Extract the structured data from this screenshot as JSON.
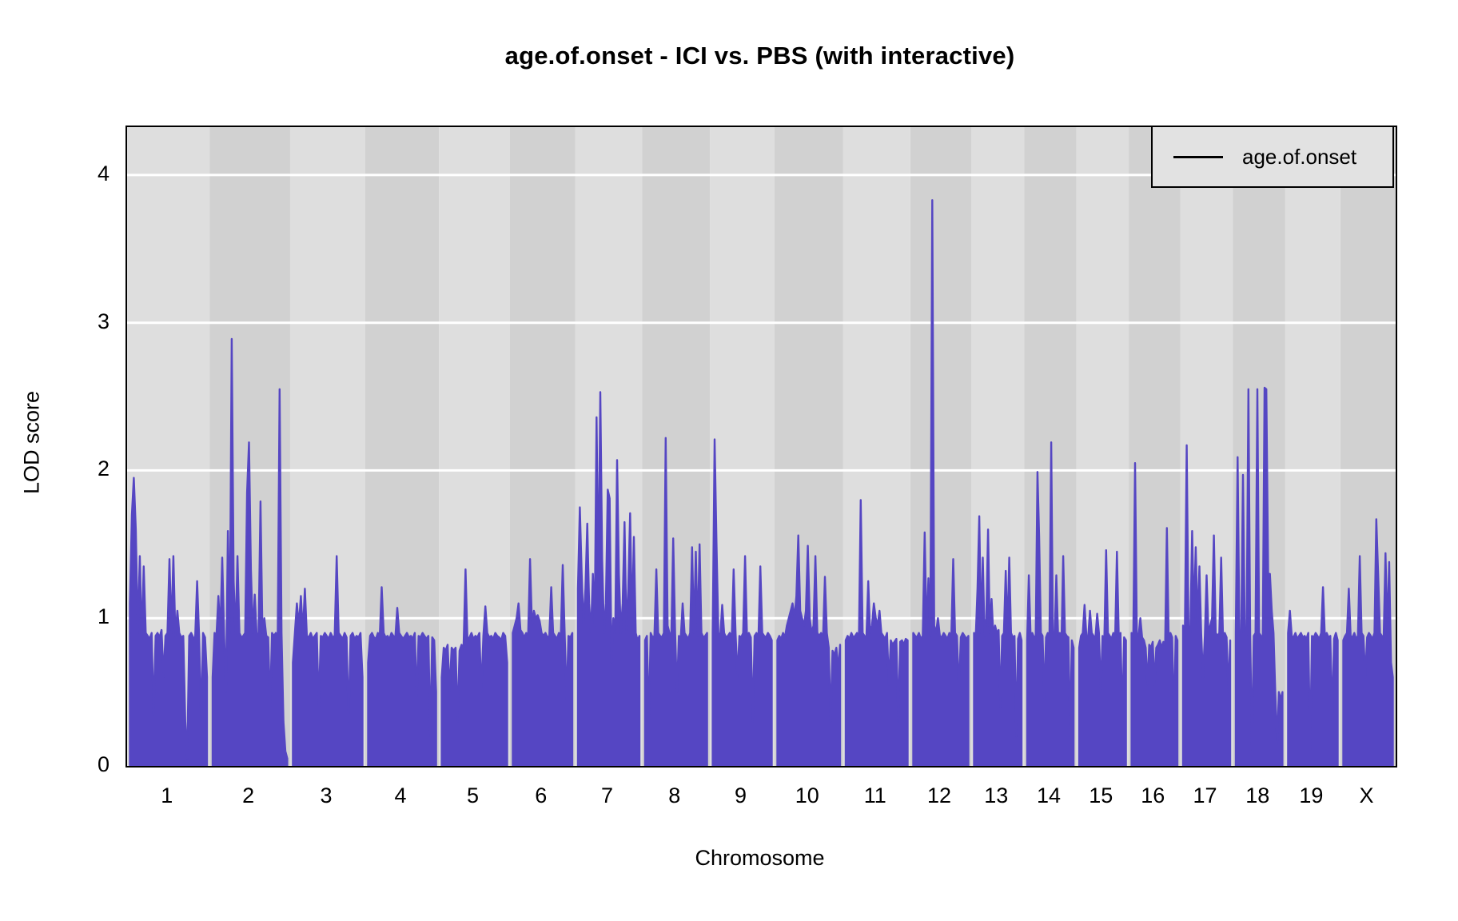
{
  "title": "age.of.onset - ICI vs. PBS (with interactive)",
  "y_axis": {
    "label": "LOD score",
    "tick_values": [
      4,
      3,
      2,
      1,
      0
    ]
  },
  "x_axis": {
    "label": "Chromosome"
  },
  "legend": {
    "label": "age.of.onset",
    "line_color": "#000000"
  },
  "colors": {
    "lod_fill": "#5546c3",
    "band_light": "#dedede",
    "band_dark": "#d1d1d1",
    "gridline": "#ffffff",
    "frame": "#000000",
    "legend_bg": "#e2e2e2"
  },
  "chart_data": {
    "type": "line",
    "title": "age.of.onset - ICI vs. PBS (with interactive)",
    "xlabel": "Chromosome",
    "ylabel": "LOD score",
    "ylim": [
      0,
      4.324
    ],
    "yticks": [
      0,
      1,
      2,
      3,
      4
    ],
    "grid": "horizontal white lines at integer LOD on alternating gray chromosome bands",
    "legend_position": "top-right",
    "series_name": "age.of.onset",
    "notable_peaks": [
      {
        "chr": "2",
        "lod": 2.89
      },
      {
        "chr": "2",
        "lod": 2.55
      },
      {
        "chr": "2",
        "lod": 2.19
      },
      {
        "chr": "7",
        "lod": 2.53
      },
      {
        "chr": "7",
        "lod": 2.36
      },
      {
        "chr": "7",
        "lod": 2.07
      },
      {
        "chr": "8",
        "lod": 2.22
      },
      {
        "chr": "9",
        "lod": 2.21
      },
      {
        "chr": "12",
        "lod": 3.83
      },
      {
        "chr": "14",
        "lod": 2.19
      },
      {
        "chr": "16",
        "lod": 2.05
      },
      {
        "chr": "17",
        "lod": 2.17
      },
      {
        "chr": "18",
        "lod": 2.56
      },
      {
        "chr": "1",
        "lod": 1.95
      },
      {
        "chr": "14",
        "lod": 1.99
      }
    ],
    "chromosomes": [
      {
        "name": "1",
        "span": [
          0.0,
          0.0652
        ],
        "lod": [
          1.1,
          1.7,
          1.95,
          1.6,
          0.9,
          1.42,
          0.85,
          1.35,
          0.9,
          0.88,
          0.86,
          0.9,
          0.35,
          0.88,
          0.9,
          0.87,
          0.92,
          0.6,
          0.88,
          0.9,
          1.4,
          0.9,
          1.42,
          0.88,
          1.05,
          0.9,
          0.87,
          0.88,
          0.3,
          0.05,
          0.88,
          0.9,
          0.87,
          0.86,
          1.25,
          0.88,
          0.3,
          0.9,
          0.87,
          0.6
        ]
      },
      {
        "name": "2",
        "span": [
          0.0652,
          0.1285
        ],
        "lod": [
          0.6,
          0.9,
          0.88,
          1.15,
          0.9,
          1.41,
          0.88,
          0.5,
          1.59,
          0.9,
          2.89,
          1.25,
          0.88,
          1.42,
          0.9,
          0.87,
          0.88,
          0.9,
          1.85,
          2.19,
          1.33,
          0.9,
          1.16,
          0.88,
          0.9,
          1.79,
          0.9,
          1.0,
          0.88,
          0.87,
          0.4,
          0.9,
          0.88,
          0.9,
          0.86,
          2.55,
          0.9,
          0.3,
          0.1,
          0.05
        ]
      },
      {
        "name": "3",
        "span": [
          0.1285,
          0.1878
        ],
        "lod": [
          0.7,
          0.9,
          1.1,
          0.95,
          1.15,
          0.9,
          1.2,
          0.88,
          0.87,
          0.9,
          0.86,
          0.88,
          0.9,
          0.4,
          0.88,
          0.87,
          0.9,
          0.88,
          0.86,
          0.9,
          0.87,
          0.88,
          1.42,
          0.9,
          0.88,
          0.86,
          0.9,
          0.87,
          0.3,
          0.88,
          0.9,
          0.86,
          0.88,
          0.87,
          0.9,
          0.6
        ]
      },
      {
        "name": "4",
        "span": [
          0.1878,
          0.2458
        ],
        "lod": [
          0.7,
          0.88,
          0.9,
          0.87,
          0.86,
          0.9,
          0.88,
          1.21,
          0.9,
          0.87,
          0.88,
          0.86,
          0.9,
          0.88,
          0.87,
          1.07,
          0.9,
          0.88,
          0.86,
          0.88,
          0.9,
          0.87,
          0.88,
          0.86,
          0.9,
          0.45,
          0.88,
          0.87,
          0.9,
          0.88,
          0.86,
          0.88,
          0.2,
          0.87,
          0.85,
          0.5
        ]
      },
      {
        "name": "5",
        "span": [
          0.2458,
          0.3018
        ],
        "lod": [
          0.6,
          0.8,
          0.78,
          0.82,
          0.5,
          0.8,
          0.78,
          0.8,
          0.3,
          0.78,
          0.82,
          0.8,
          1.33,
          0.85,
          0.87,
          0.9,
          0.86,
          0.88,
          0.87,
          0.9,
          0.5,
          0.88,
          1.08,
          0.9,
          0.87,
          0.88,
          0.86,
          0.9,
          0.88,
          0.87,
          0.85,
          0.9,
          0.88,
          0.7
        ]
      },
      {
        "name": "6",
        "span": [
          0.3018,
          0.3532
        ],
        "lod": [
          0.9,
          0.95,
          1.0,
          1.1,
          0.92,
          0.9,
          0.87,
          0.9,
          0.88,
          1.4,
          0.95,
          1.05,
          1.0,
          1.02,
          0.98,
          0.9,
          0.88,
          0.9,
          0.87,
          0.88,
          1.21,
          0.9,
          0.88,
          0.86,
          0.9,
          0.88,
          1.36,
          0.9,
          0.45,
          0.88,
          0.87,
          0.9
        ]
      },
      {
        "name": "7",
        "span": [
          0.3532,
          0.4061
        ],
        "lod": [
          1.2,
          1.75,
          1.3,
          0.95,
          1.2,
          1.64,
          1.1,
          0.9,
          1.3,
          0.95,
          2.36,
          1.2,
          2.53,
          1.4,
          0.9,
          1.1,
          1.87,
          1.81,
          0.7,
          1.0,
          0.9,
          2.07,
          1.3,
          0.9,
          1.1,
          1.65,
          0.9,
          1.2,
          1.71,
          0.95,
          1.55,
          0.9,
          0.85,
          0.88
        ]
      },
      {
        "name": "8",
        "span": [
          0.4061,
          0.4594
        ],
        "lod": [
          0.85,
          0.88,
          0.3,
          0.9,
          0.87,
          0.88,
          1.33,
          0.9,
          0.88,
          0.87,
          0.9,
          2.22,
          0.95,
          0.9,
          0.88,
          1.54,
          0.9,
          0.5,
          0.88,
          0.87,
          1.1,
          0.9,
          0.88,
          0.86,
          0.9,
          1.48,
          0.9,
          1.45,
          0.88,
          1.5,
          0.9,
          0.87,
          0.88,
          0.9
        ]
      },
      {
        "name": "9",
        "span": [
          0.4594,
          0.5104
        ],
        "lod": [
          0.9,
          2.21,
          1.52,
          0.9,
          0.88,
          1.09,
          0.9,
          0.87,
          0.88,
          0.9,
          0.86,
          1.33,
          0.9,
          0.6,
          0.88,
          0.87,
          0.9,
          1.42,
          0.88,
          0.9,
          0.87,
          0.3,
          0.88,
          0.9,
          0.86,
          1.35,
          0.9,
          0.88,
          0.87,
          0.9,
          0.88,
          0.85
        ]
      },
      {
        "name": "10",
        "span": [
          0.5104,
          0.5643
        ],
        "lod": [
          0.85,
          0.88,
          0.86,
          0.9,
          0.87,
          0.95,
          1.0,
          1.05,
          1.1,
          1.0,
          1.15,
          1.56,
          1.05,
          1.0,
          0.95,
          1.05,
          1.49,
          1.0,
          0.9,
          0.95,
          1.42,
          0.9,
          0.88,
          0.9,
          0.86,
          1.28,
          0.9,
          0.8,
          0.3,
          0.78,
          0.75,
          0.8,
          0.65,
          0.82
        ]
      },
      {
        "name": "11",
        "span": [
          0.5643,
          0.6175
        ],
        "lod": [
          0.85,
          0.88,
          0.86,
          0.9,
          0.87,
          0.88,
          0.9,
          0.86,
          1.8,
          0.9,
          0.88,
          0.87,
          1.25,
          0.9,
          0.95,
          1.1,
          1.0,
          0.95,
          1.05,
          0.9,
          0.88,
          0.86,
          0.9,
          0.55,
          0.85,
          0.82,
          0.84,
          0.86,
          0.3,
          0.84,
          0.85,
          0.82,
          0.86,
          0.85
        ]
      },
      {
        "name": "12",
        "span": [
          0.6175,
          0.6654
        ],
        "lod": [
          0.9,
          0.88,
          0.87,
          0.9,
          0.86,
          0.88,
          1.58,
          0.9,
          1.27,
          0.88,
          3.83,
          0.95,
          0.9,
          1.0,
          0.88,
          0.87,
          0.9,
          0.88,
          0.86,
          0.9,
          0.87,
          1.4,
          0.9,
          0.88,
          0.5,
          0.87,
          0.9,
          0.88,
          0.86,
          0.88
        ]
      },
      {
        "name": "13",
        "span": [
          0.6654,
          0.7073
        ],
        "lod": [
          0.9,
          0.88,
          1.2,
          1.69,
          0.9,
          1.41,
          0.88,
          1.0,
          1.6,
          0.9,
          1.13,
          0.88,
          0.95,
          0.9,
          0.92,
          0.4,
          0.88,
          0.9,
          1.32,
          0.88,
          1.41,
          0.9,
          0.87,
          0.88,
          0.2,
          0.86,
          0.9,
          0.85
        ]
      },
      {
        "name": "14",
        "span": [
          0.7073,
          0.7483
        ],
        "lod": [
          0.85,
          1.29,
          0.88,
          0.9,
          0.87,
          0.88,
          1.99,
          1.55,
          0.9,
          0.88,
          0.45,
          0.87,
          0.9,
          0.88,
          2.19,
          0.9,
          0.87,
          1.29,
          0.88,
          0.9,
          0.86,
          1.42,
          0.9,
          0.88,
          0.87,
          0.2,
          0.85,
          0.8
        ]
      },
      {
        "name": "15",
        "span": [
          0.7483,
          0.7896
        ],
        "lod": [
          0.8,
          0.88,
          0.9,
          1.09,
          0.88,
          0.87,
          1.05,
          0.9,
          0.88,
          0.86,
          1.03,
          0.9,
          0.5,
          0.88,
          0.87,
          1.46,
          0.9,
          0.88,
          0.86,
          0.9,
          0.87,
          1.45,
          0.88,
          0.9,
          0.3,
          0.87,
          0.85
        ]
      },
      {
        "name": "16",
        "span": [
          0.7896,
          0.8302
        ],
        "lod": [
          0.9,
          0.88,
          2.05,
          0.9,
          0.88,
          1.0,
          0.87,
          0.85,
          0.8,
          0.55,
          0.82,
          0.8,
          0.84,
          0.55,
          0.8,
          0.82,
          0.85,
          0.8,
          0.84,
          0.82,
          1.61,
          0.88,
          0.9,
          0.87,
          0.3,
          0.88,
          0.85
        ]
      },
      {
        "name": "17",
        "span": [
          0.8302,
          0.8718
        ],
        "lod": [
          0.95,
          0.9,
          2.17,
          0.95,
          0.9,
          1.59,
          1.0,
          1.48,
          0.95,
          1.35,
          0.9,
          0.6,
          0.88,
          1.29,
          0.9,
          0.95,
          1.0,
          1.56,
          0.9,
          0.88,
          0.9,
          1.41,
          0.88,
          0.9,
          0.87,
          0.5,
          0.85
        ]
      },
      {
        "name": "18",
        "span": [
          0.8718,
          0.913
        ],
        "lod": [
          0.9,
          2.09,
          0.9,
          0.88,
          1.97,
          0.9,
          0.85,
          2.55,
          0.9,
          0.1,
          0.88,
          0.9,
          2.55,
          0.9,
          0.88,
          0.85,
          2.56,
          2.55,
          1.3,
          1.3,
          1.05,
          0.9,
          0.5,
          0.15,
          0.5,
          0.45,
          0.5
        ]
      },
      {
        "name": "19",
        "span": [
          0.913,
          0.9565
        ],
        "lod": [
          0.9,
          1.05,
          0.88,
          0.87,
          0.9,
          0.86,
          0.88,
          0.9,
          0.87,
          0.88,
          0.86,
          0.9,
          0.1,
          0.88,
          0.87,
          0.9,
          0.88,
          0.86,
          0.9,
          1.21,
          0.88,
          0.9,
          0.87,
          0.88,
          0.3,
          0.86,
          0.9,
          0.85
        ]
      },
      {
        "name": "X",
        "span": [
          0.9565,
          1.0
        ],
        "lod": [
          0.85,
          0.88,
          0.9,
          1.2,
          0.88,
          0.87,
          0.9,
          0.86,
          0.88,
          1.42,
          0.9,
          0.88,
          0.6,
          0.87,
          0.9,
          0.88,
          0.86,
          0.9,
          1.67,
          1.3,
          0.9,
          0.88,
          0.87,
          1.44,
          0.9,
          1.38,
          0.7,
          0.6
        ]
      }
    ]
  }
}
